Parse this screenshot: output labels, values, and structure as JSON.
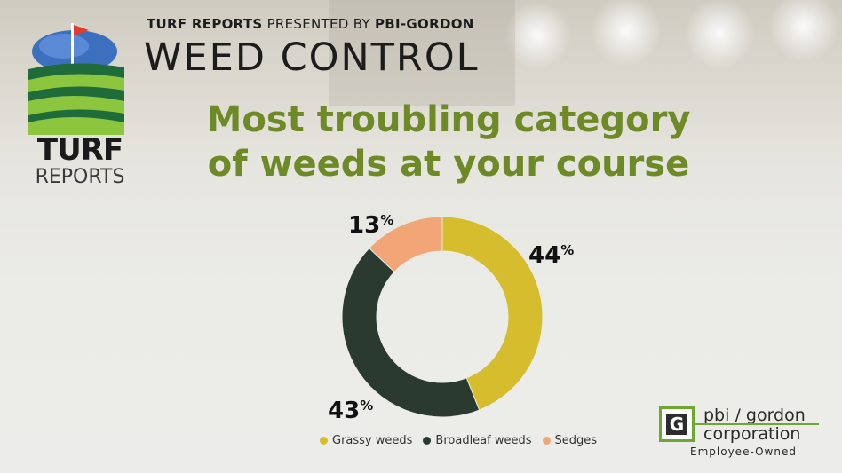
{
  "header": {
    "brand_bold": "TURF REPORTS",
    "brand_rest": " PRESENTED BY ",
    "sponsor_bold": "PBI-GORDON",
    "title": "WEED CONTROL"
  },
  "logo": {
    "line1": "TURF",
    "line2": "REPORTS",
    "icon": "golf-flag-field-icon"
  },
  "chart_data": {
    "type": "donut",
    "title_line1": "Most troubling category",
    "title_line2": "of weeds at your course",
    "unit": "%",
    "categories": [
      "Grassy weeds",
      "Broadleaf weeds",
      "Sedges"
    ],
    "values": [
      44,
      43,
      13
    ],
    "colors": [
      "#d6bd2e",
      "#2a3a2f",
      "#f2a576"
    ],
    "legend_position": "bottom"
  },
  "footer": {
    "pbi_letter": "G",
    "pbi_line1": "pbi / gordon",
    "pbi_line2": "corporation",
    "pbi_tagline": "Employee-Owned"
  }
}
